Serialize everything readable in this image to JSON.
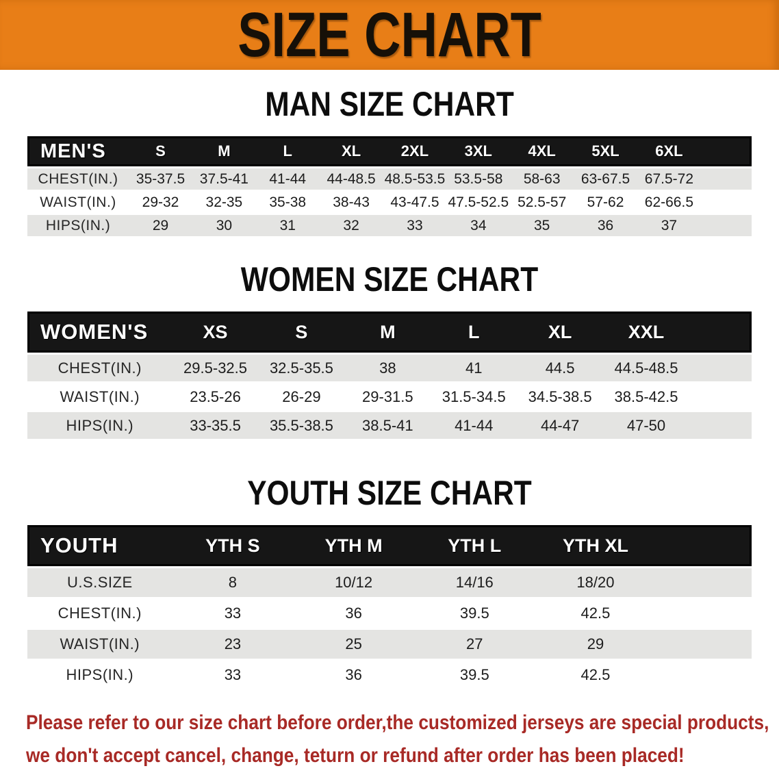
{
  "banner": {
    "title": "SIZE CHART",
    "bg_color": "#e87e17",
    "text_color": "#161008"
  },
  "sections": [
    {
      "heading": "MAN SIZE CHART",
      "corner_label": "MEN'S",
      "columns": [
        "S",
        "M",
        "L",
        "XL",
        "2XL",
        "3XL",
        "4XL",
        "5XL",
        "6XL"
      ],
      "rows": [
        {
          "label": "CHEST(IN.)",
          "values": [
            "35-37.5",
            "37.5-41",
            "41-44",
            "44-48.5",
            "48.5-53.5",
            "53.5-58",
            "58-63",
            "63-67.5",
            "67.5-72"
          ]
        },
        {
          "label": "WAIST(IN.)",
          "values": [
            "29-32",
            "32-35",
            "35-38",
            "38-43",
            "43-47.5",
            "47.5-52.5",
            "52.5-57",
            "57-62",
            "62-66.5"
          ]
        },
        {
          "label": "HIPS(IN.)",
          "values": [
            "29",
            "30",
            "31",
            "32",
            "33",
            "34",
            "35",
            "36",
            "37"
          ]
        }
      ]
    },
    {
      "heading": "WOMEN SIZE CHART",
      "corner_label": "WOMEN'S",
      "columns": [
        "XS",
        "S",
        "M",
        "L",
        "XL",
        "XXL"
      ],
      "rows": [
        {
          "label": "CHEST(IN.)",
          "values": [
            "29.5-32.5",
            "32.5-35.5",
            "38",
            "41",
            "44.5",
            "44.5-48.5"
          ]
        },
        {
          "label": "WAIST(IN.)",
          "values": [
            "23.5-26",
            "26-29",
            "29-31.5",
            "31.5-34.5",
            "34.5-38.5",
            "38.5-42.5"
          ]
        },
        {
          "label": "HIPS(IN.)",
          "values": [
            "33-35.5",
            "35.5-38.5",
            "38.5-41",
            "41-44",
            "44-47",
            "47-50"
          ]
        }
      ]
    },
    {
      "heading": "YOUTH SIZE CHART",
      "corner_label": "YOUTH",
      "columns": [
        "YTH S",
        "YTH M",
        "YTH L",
        "YTH XL"
      ],
      "rows": [
        {
          "label": "U.S.SIZE",
          "values": [
            "8",
            "10/12",
            "14/16",
            "18/20"
          ]
        },
        {
          "label": "CHEST(IN.)",
          "values": [
            "33",
            "36",
            "39.5",
            "42.5"
          ]
        },
        {
          "label": "WAIST(IN.)",
          "values": [
            "23",
            "25",
            "27",
            "29"
          ]
        },
        {
          "label": "HIPS(IN.)",
          "values": [
            "33",
            "36",
            "39.5",
            "42.5"
          ]
        }
      ]
    }
  ],
  "footer": {
    "line1": "Please refer to our size chart before order,the customized jerseys are special products,",
    "line2": "we don't accept cancel, change, teturn or refund after order has been placed!",
    "text_color": "#a82a26"
  },
  "style_colors": {
    "header_bar": "#161616",
    "row_stripe": "#e4e4e2"
  }
}
